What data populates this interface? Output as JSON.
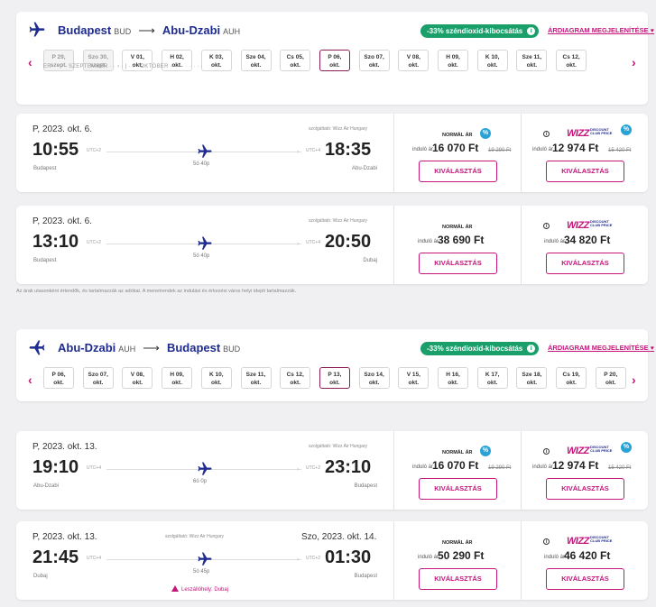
{
  "outbound": {
    "from_city": "Budapest",
    "from_code": "BUD",
    "arrow": "⟶",
    "to_city": "Abu-Dzabi",
    "to_code": "AUH",
    "co2_badge": "-33% széndioxid-kibocsátás",
    "price_chart_link": "ÁRDIAGRAM MEGJELENÍTÉSE",
    "dates": [
      {
        "day": "P 29,",
        "month": "szept.",
        "dim": true
      },
      {
        "day": "Szo 30,",
        "month": "szept.",
        "dim": true
      },
      {
        "day": "V 01,",
        "month": "okt."
      },
      {
        "day": "H 02,",
        "month": "okt."
      },
      {
        "day": "K 03,",
        "month": "okt."
      },
      {
        "day": "Sze 04,",
        "month": "okt."
      },
      {
        "day": "Cs 05,",
        "month": "okt."
      },
      {
        "day": "P 06,",
        "month": "okt.",
        "selected": true
      },
      {
        "day": "Szo 07,",
        "month": "okt."
      },
      {
        "day": "V 08,",
        "month": "okt."
      },
      {
        "day": "H 09,",
        "month": "okt."
      },
      {
        "day": "K 10,",
        "month": "okt."
      },
      {
        "day": "Sze 11,",
        "month": "okt."
      },
      {
        "day": "Cs 12,",
        "month": "okt."
      }
    ],
    "month_bar": "ER  ·  ·  ·  ·  SZEPTEMBER  ·  ·  ‹  ·  |  ·  ›  ·  OKTÓBER  ·  ·  ·  ·  ·  ·  ·  ·  ·",
    "flights": [
      {
        "date": "P, 2023. okt. 6.",
        "operator": "szolgáltató: Wizz Air Hungary",
        "dep_time": "10:55",
        "dep_tz": "UTC+2",
        "dep_city": "Budapest",
        "arr_time": "18:35",
        "arr_tz": "UTC+4",
        "arr_city": "Abu-Dzabi",
        "duration": "5ó 40p",
        "normal_title": "NORMÁL ÁR",
        "normal_from": "induló ár",
        "normal_price": "16 070 Ft",
        "normal_old": "19 290 Ft",
        "club_from": "induló ár",
        "club_price": "12 974 Ft",
        "club_old": "15 420 Ft",
        "select_label": "KIVÁLASZTÁS"
      },
      {
        "date": "P, 2023. okt. 6.",
        "operator": "szolgáltató: Wizz Air Hungary",
        "dep_time": "13:10",
        "dep_tz": "UTC+2",
        "dep_city": "Budapest",
        "arr_time": "20:50",
        "arr_tz": "UTC+4",
        "arr_city": "Dubaj",
        "duration": "5ó 40p",
        "normal_title": "NORMÁL ÁR",
        "normal_from": "induló ár",
        "normal_price": "38 690 Ft",
        "club_from": "induló ár",
        "club_price": "34 820 Ft",
        "select_label": "KIVÁLASZTÁS"
      }
    ]
  },
  "note": "Az árak utasonként értendők, és tartalmazzák az adókat. A menetrendek az indulási és érkezési város helyi idejét tartalmazzák.",
  "inbound": {
    "from_city": "Abu-Dzabi",
    "from_code": "AUH",
    "arrow": "⟶",
    "to_city": "Budapest",
    "to_code": "BUD",
    "co2_badge": "-33% széndioxid-kibocsátás",
    "price_chart_link": "ÁRDIAGRAM MEGJELENÍTÉSE",
    "dates": [
      {
        "day": "P 06,",
        "month": "okt."
      },
      {
        "day": "Szo 07,",
        "month": "okt."
      },
      {
        "day": "V 08,",
        "month": "okt."
      },
      {
        "day": "H 09,",
        "month": "okt."
      },
      {
        "day": "K 10,",
        "month": "okt."
      },
      {
        "day": "Sze 11,",
        "month": "okt."
      },
      {
        "day": "Cs 12,",
        "month": "okt."
      },
      {
        "day": "P 13,",
        "month": "okt.",
        "selected": true
      },
      {
        "day": "Szo 14,",
        "month": "okt."
      },
      {
        "day": "V 15,",
        "month": "okt."
      },
      {
        "day": "H 16,",
        "month": "okt."
      },
      {
        "day": "K 17,",
        "month": "okt."
      },
      {
        "day": "Sze 18,",
        "month": "okt."
      },
      {
        "day": "Cs 19,",
        "month": "okt."
      },
      {
        "day": "P 20,",
        "month": "okt."
      }
    ],
    "flights": [
      {
        "date": "P, 2023. okt. 13.",
        "operator": "szolgáltató: Wizz Air Hungary",
        "dep_time": "19:10",
        "dep_tz": "UTC+4",
        "dep_city": "Abu-Dzabi",
        "arr_time": "23:10",
        "arr_tz": "UTC+2",
        "arr_city": "Budapest",
        "duration": "6ó 0p",
        "normal_title": "NORMÁL ÁR",
        "normal_from": "induló ár",
        "normal_price": "16 070 Ft",
        "normal_old": "19 290 Ft",
        "club_from": "induló ár",
        "club_price": "12 974 Ft",
        "club_old": "15 420 Ft",
        "select_label": "KIVÁLASZTÁS"
      },
      {
        "date": "P, 2023. okt. 13.",
        "arr_date": "Szo, 2023. okt. 14.",
        "operator": "szolgáltató: Wizz Air Hungary",
        "dep_time": "21:45",
        "dep_tz": "UTC+4",
        "dep_city": "Dubaj",
        "arr_time": "01:30",
        "arr_tz": "UTC+2",
        "arr_city": "Budapest",
        "duration": "5ó 45p",
        "warning": "Leszállóhely: Dubaj",
        "normal_title": "NORMÁL ÁR",
        "normal_from": "induló ár",
        "normal_price": "50 290 Ft",
        "club_from": "induló ár",
        "club_price": "46 420 Ft",
        "select_label": "KIVÁLASZTÁS"
      }
    ]
  },
  "club": {
    "wizz": "WIZZ",
    "line1": "DISCOUNT",
    "line2": "CLUB PRICE"
  },
  "pct_glyph": "%",
  "info_glyph": "i",
  "chevron_left": "‹",
  "chevron_right": "›",
  "colors": {
    "brand_blue": "#1e2b8f",
    "brand_pink": "#c5157a",
    "green": "#1a9f6b",
    "discount_blue": "#29a3d6"
  }
}
